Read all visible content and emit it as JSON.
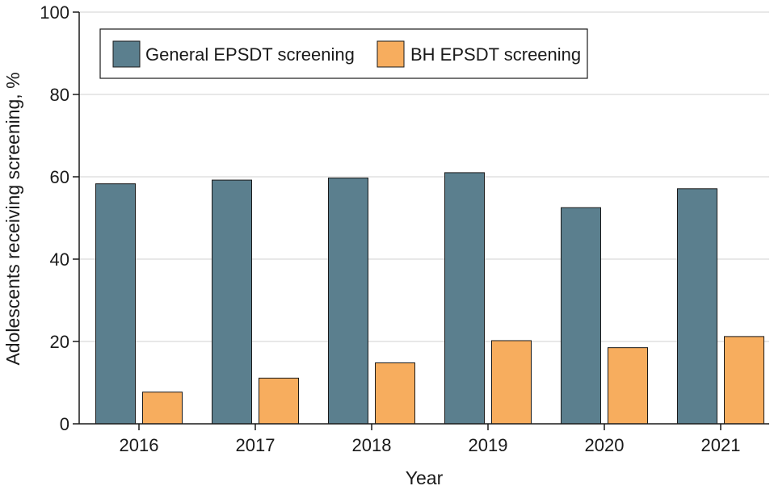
{
  "chart_data": {
    "type": "bar",
    "xlabel": "Year",
    "ylabel": "Adolescents receiving screening, %",
    "categories": [
      "2016",
      "2017",
      "2018",
      "2019",
      "2020",
      "2021"
    ],
    "series": [
      {
        "name": "General EPSDT screening",
        "color": "#5b7f8e",
        "values": [
          58.3,
          59.2,
          59.7,
          61.0,
          52.5,
          57.1
        ]
      },
      {
        "name": "BH EPSDT screening",
        "color": "#f7ad5e",
        "values": [
          7.7,
          11.1,
          14.8,
          20.2,
          18.5,
          21.2
        ]
      }
    ],
    "ylim": [
      0,
      100
    ],
    "yticks": [
      0,
      20,
      40,
      60,
      80,
      100
    ],
    "grid": true,
    "legend_position": "top-left"
  }
}
